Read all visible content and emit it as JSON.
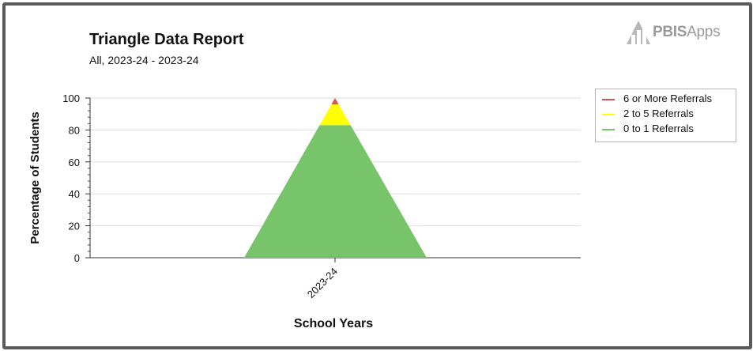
{
  "header": {
    "title": "Triangle Data Report",
    "subtitle": "All, 2023-24 - 2023-24"
  },
  "logo": {
    "brand_bold": "PBIS",
    "brand_light": "Apps",
    "icon": "pbisapps-logo-icon"
  },
  "colors": {
    "frame": "#5a5a5a",
    "red": "#d9534f",
    "yellow": "#ffff00",
    "green": "#77c46a"
  },
  "chart_data": {
    "type": "area",
    "title": "Triangle Data Report",
    "subtitle": "All, 2023-24 - 2023-24",
    "xlabel": "School Years",
    "ylabel": "Percentage of Students",
    "categories": [
      "2023-24"
    ],
    "ylim": [
      0,
      100
    ],
    "yticks": [
      0,
      20,
      40,
      60,
      80,
      100
    ],
    "grid": true,
    "legend_position": "right",
    "series": [
      {
        "name": "6 or More Referrals",
        "color": "#d9534f",
        "from": 96,
        "to": 100
      },
      {
        "name": "2 to 5 Referrals",
        "color": "#ffff00",
        "from": 83,
        "to": 96
      },
      {
        "name": "0 to 1 Referrals",
        "color": "#77c46a",
        "from": 0,
        "to": 83
      }
    ]
  }
}
